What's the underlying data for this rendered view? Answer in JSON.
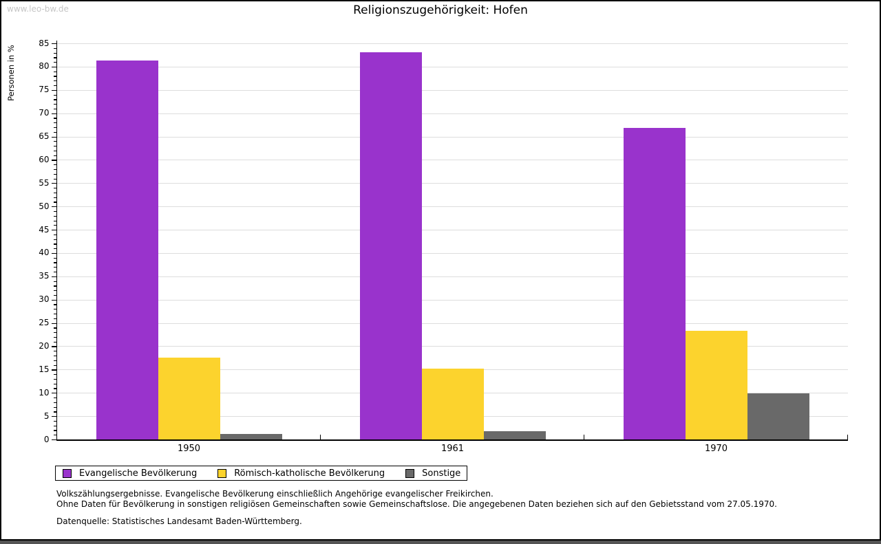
{
  "page": {
    "watermark": "www.leo-bw.de",
    "title": "Religionszugehörigkeit: Hofen"
  },
  "chart_data": {
    "type": "bar",
    "title": "Religionszugehörigkeit: Hofen",
    "ylabel": "Personen in %",
    "xlabel": "",
    "categories": [
      "1950",
      "1961",
      "1970"
    ],
    "series": [
      {
        "name": "Evangelische Bevölkerung",
        "color": "#9933CC",
        "values": [
          81.3,
          83.1,
          66.8
        ]
      },
      {
        "name": "Römisch-katholische Bevölkerung",
        "color": "#FCD32D",
        "values": [
          17.5,
          15.2,
          23.3
        ]
      },
      {
        "name": "Sonstige",
        "color": "#696969",
        "values": [
          1.2,
          1.7,
          9.9
        ]
      }
    ],
    "ylim": [
      0,
      85
    ],
    "ytick_step": 5,
    "yminor_step": 1,
    "grid": true,
    "gridline_color": "#dddddd",
    "legend_position": "bottom"
  },
  "footnotes": {
    "line1": "Volkszählungsergebnisse. Evangelische Bevölkerung einschließlich Angehörige evangelischer Freikirchen.",
    "line2": "Ohne Daten für Bevölkerung in sonstigen religiösen Gemeinschaften sowie Gemeinschaftslose. Die angegebenen Daten beziehen sich auf den Gebietsstand vom 27.05.1970.",
    "source": "Datenquelle: Statistisches Landesamt Baden-Württemberg."
  }
}
